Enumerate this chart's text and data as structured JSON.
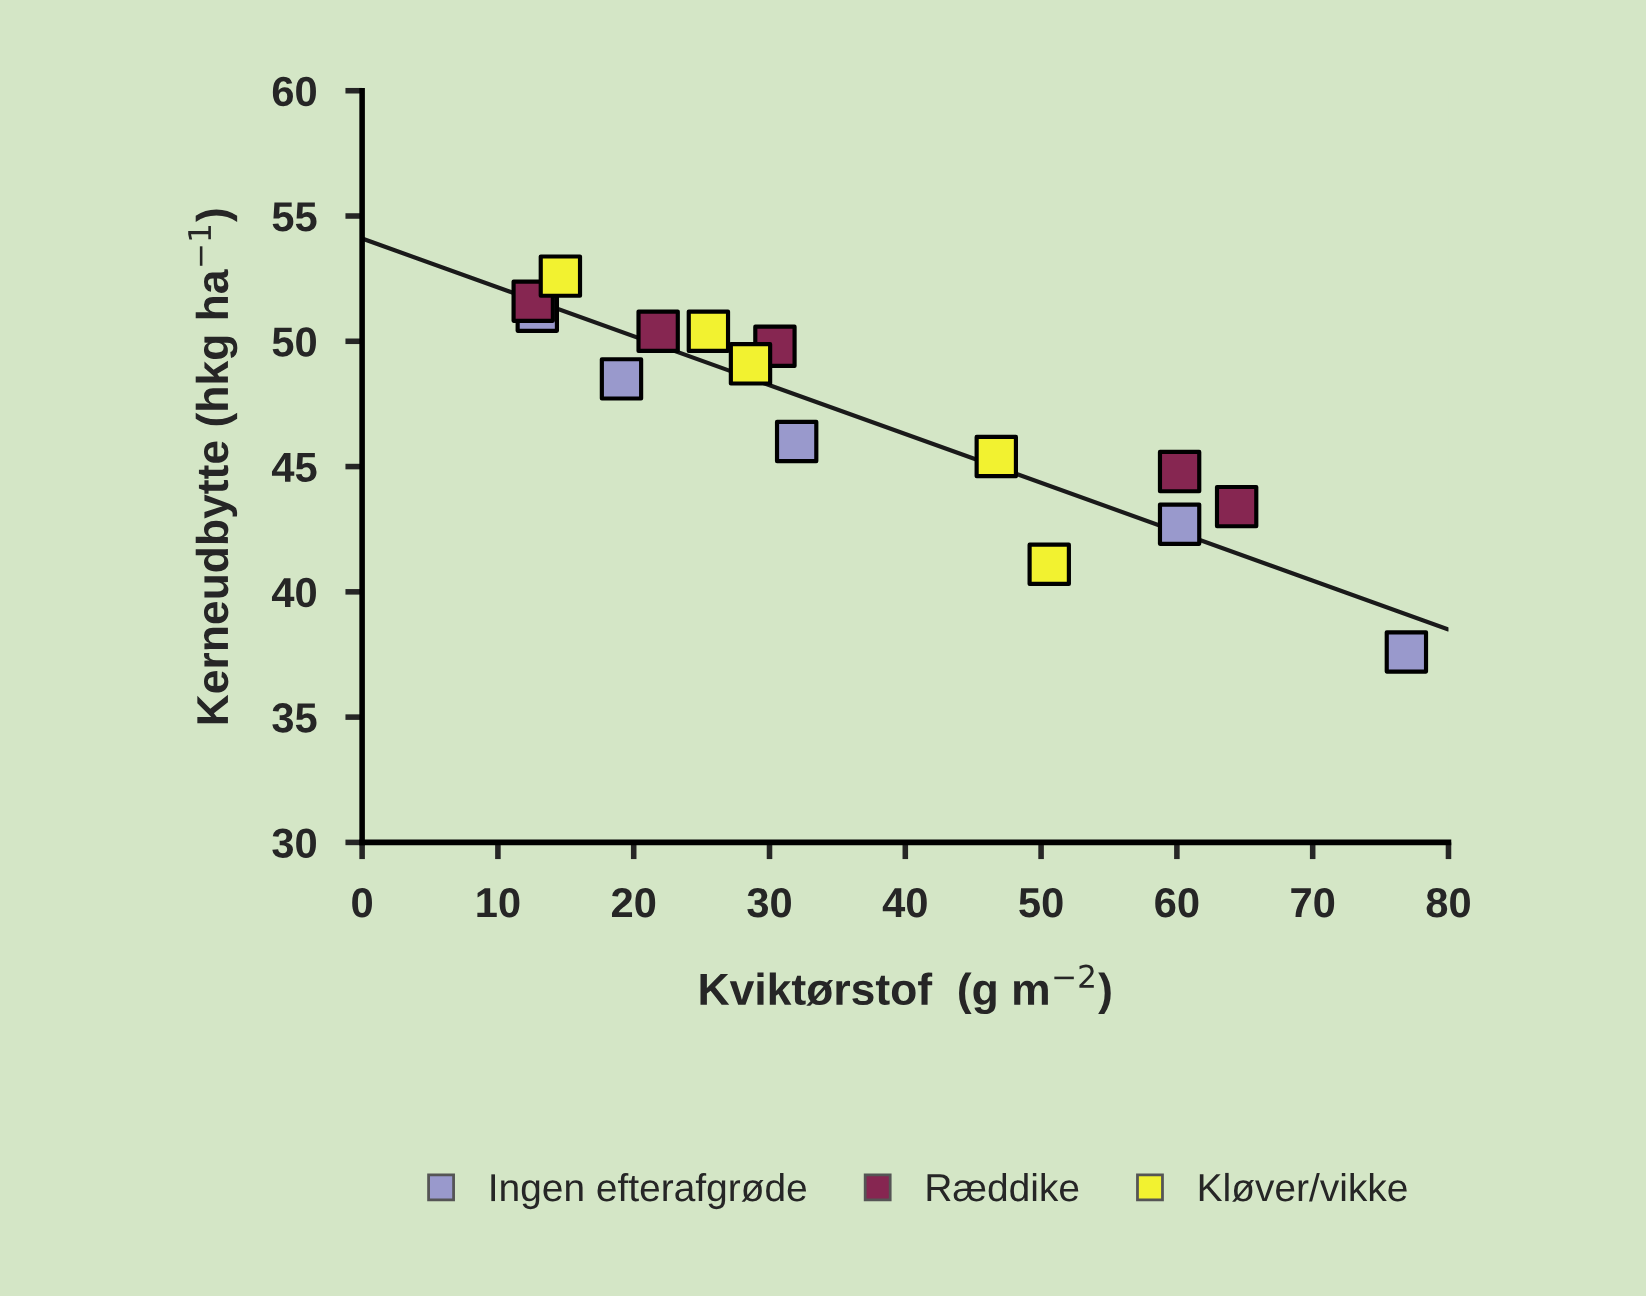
{
  "chart_data": {
    "type": "scatter",
    "xlabel": "Kviktørstof  (g m$^{−2}$)",
    "ylabel": "Kerneudbytte (hkg ha$^{−1}$)",
    "xlim": [
      0,
      80
    ],
    "xticks": [
      0,
      10,
      20,
      30,
      40,
      50,
      60,
      70,
      80
    ],
    "ylim": [
      30,
      60
    ],
    "yticks": [
      30,
      35,
      40,
      45,
      50,
      55,
      60
    ],
    "grid": false,
    "legend": "bottom",
    "marker": "square",
    "series": [
      {
        "name": "Ingen efterafgrøde",
        "color": "#9999cc",
        "x": [
          12.9,
          19.1,
          32.0,
          60.2,
          76.9
        ],
        "values": [
          51.2,
          48.5,
          46.0,
          42.7,
          37.6
        ]
      },
      {
        "name": "Ræddike",
        "color": "#862651",
        "x": [
          12.6,
          21.8,
          30.4,
          60.2,
          64.4
        ],
        "values": [
          51.6,
          50.4,
          49.8,
          44.8,
          43.4
        ]
      },
      {
        "name": "Kløver/vikke",
        "color": "#f2f230",
        "x": [
          14.6,
          25.5,
          28.6,
          46.7,
          50.6
        ],
        "values": [
          52.6,
          50.4,
          49.1,
          45.4,
          41.1
        ]
      },
      {
        "type": "line",
        "marker": "none",
        "color": "#1a1a1a",
        "x": [
          0,
          80
        ],
        "values": [
          54.1,
          38.5
        ]
      }
    ]
  }
}
